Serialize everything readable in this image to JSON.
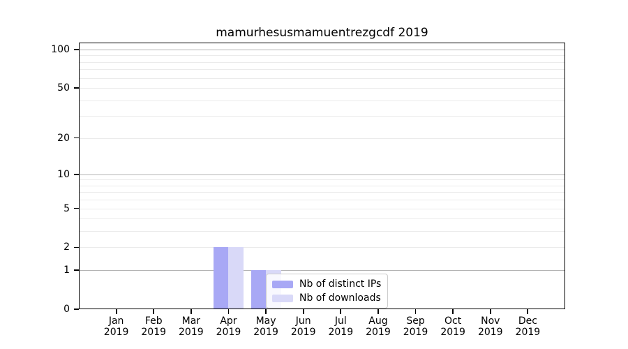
{
  "chart_data": {
    "type": "bar",
    "title": "mamurhesusmamuentrezgcdf 2019",
    "categories": [
      "Jan",
      "Feb",
      "Mar",
      "Apr",
      "May",
      "Jun",
      "Jul",
      "Aug",
      "Sep",
      "Oct",
      "Nov",
      "Dec"
    ],
    "x_year_label": "2019",
    "series": [
      {
        "name": "Nb of distinct IPs",
        "color": "#a8a8f5",
        "values": [
          0,
          0,
          0,
          2,
          1,
          0,
          0,
          0,
          0,
          0,
          0,
          0
        ]
      },
      {
        "name": "Nb of downloads",
        "color": "#d9d9f8",
        "values": [
          0,
          0,
          0,
          2,
          1,
          0,
          0,
          0,
          0,
          0,
          0,
          0
        ]
      }
    ],
    "yscale": "log1p",
    "ylim": [
      0,
      100
    ],
    "y_ticks": [
      0,
      1,
      2,
      5,
      10,
      20,
      50,
      100
    ],
    "y_minor_gridlines": [
      3,
      4,
      6,
      7,
      8,
      9,
      30,
      40,
      60,
      70,
      80,
      90
    ],
    "y_major_gridlines": [
      1,
      10,
      100
    ],
    "grid": "on",
    "legend_position": "inside-bottom-center"
  }
}
